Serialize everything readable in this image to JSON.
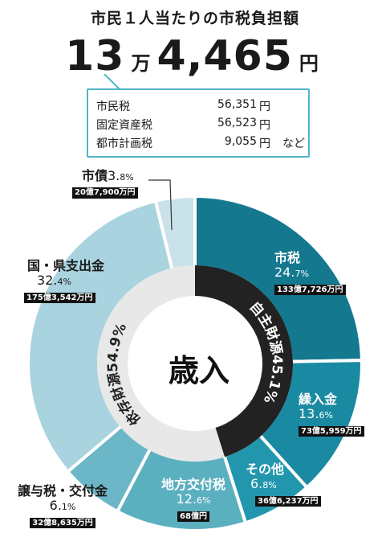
{
  "title": "市民１人当たりの市税負担額",
  "total": {
    "man_value": "13",
    "man_unit": "万",
    "rest_value": "4,465",
    "yen_unit": "円"
  },
  "taxes": [
    {
      "name": "市民税",
      "amount": "56,351",
      "unit": "円",
      "note": ""
    },
    {
      "name": "固定資産税",
      "amount": "56,523",
      "unit": "円",
      "note": ""
    },
    {
      "name": "都市計画税",
      "amount": "9,055",
      "unit": "円",
      "note": "など"
    }
  ],
  "center_label": "歳入",
  "colors": {
    "outer": [
      "#14788f",
      "#1a8aa2",
      "#2296ad",
      "#5bb0c0",
      "#6bb7c7",
      "#a9d3de",
      "#c9e2ea"
    ],
    "inner_own": "#222222",
    "inner_dep": "#e8e8e8",
    "callout_border": "#4fb5c8"
  },
  "chart_data": {
    "type": "pie",
    "title": "歳入",
    "slices": [
      {
        "name": "市税",
        "percent_int": "24.",
        "percent_dec": "7%",
        "value": 24.7,
        "amount": "133億7,726万円"
      },
      {
        "name": "繰入金",
        "percent_int": "13.",
        "percent_dec": "6%",
        "value": 13.6,
        "amount": "73億5,959万円"
      },
      {
        "name": "その他",
        "percent_int": "6.",
        "percent_dec": "8%",
        "value": 6.8,
        "amount": "36億6,237万円"
      },
      {
        "name": "地方交付税",
        "percent_int": "12.",
        "percent_dec": "6%",
        "value": 12.6,
        "amount": "68億円"
      },
      {
        "name": "譲与税・交付金",
        "percent_int": "6.",
        "percent_dec": "1%",
        "value": 6.1,
        "amount": "32億8,635万円"
      },
      {
        "name": "国・県支出金",
        "percent_int": "32.",
        "percent_dec": "4%",
        "value": 32.4,
        "amount": "175億3,542万円"
      },
      {
        "name": "市債",
        "percent_int": "3.",
        "percent_dec": "8%",
        "value": 3.8,
        "amount": "20億7,900万円"
      }
    ],
    "inner_ring": [
      {
        "name": "自主財源45.1%",
        "value": 45.1
      },
      {
        "name": "依存財源54.9%",
        "value": 54.9
      }
    ]
  }
}
